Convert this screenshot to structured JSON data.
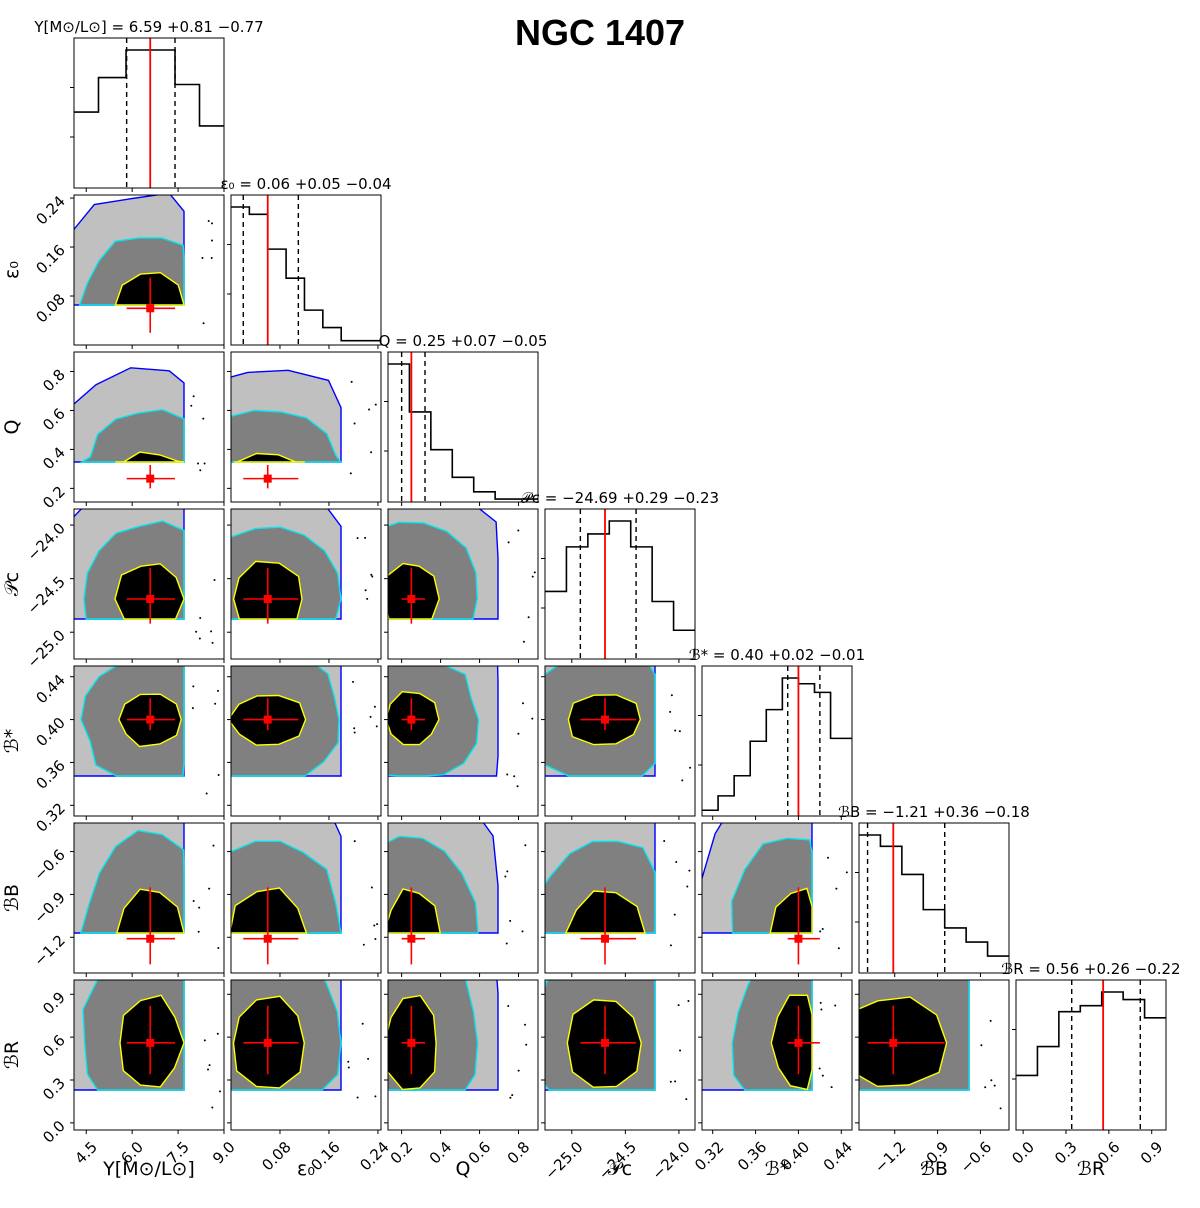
{
  "page_title": "NGC 1407",
  "colors": {
    "level_1sigma": "#000000",
    "level_2sigma": "#808080",
    "level_3sigma": "#c0c0c0",
    "contour_1sigma": "#ffff00",
    "contour_2sigma": "#00e5ee",
    "contour_3sigma": "#0000ff",
    "median_marker": "#ff0000",
    "quantile_line": "#000000"
  },
  "chart_data": {
    "type": "corner",
    "title": "NGC 1407",
    "grid": false,
    "parameters": [
      {
        "key": "upsilon",
        "label": "Υ[M⊙/L⊙]",
        "title": "Υ[M⊙/L⊙] = 6.59 +0.81 −0.77",
        "median": 6.59,
        "plus": 0.81,
        "minus": 0.77,
        "range": [
          4.1,
          9.0
        ],
        "ticks": [
          4.5,
          6.0,
          7.5,
          9.0
        ],
        "tick_labels": [
          "4.5",
          "6.0",
          "7.5",
          "9.0"
        ],
        "hist_edges": [
          4.1,
          4.9,
          5.8,
          6.6,
          7.4,
          8.2,
          9.0
        ],
        "hist_counts": [
          0.55,
          0.8,
          1.0,
          1.0,
          0.75,
          0.45
        ]
      },
      {
        "key": "eps0",
        "label": "ε₀",
        "title": "ε₀ = 0.06 +0.05 −0.04",
        "median": 0.06,
        "plus": 0.05,
        "minus": 0.04,
        "range": [
          0.0,
          0.245
        ],
        "ticks": [
          0.08,
          0.16,
          0.24
        ],
        "tick_labels": [
          "0.08",
          "0.16",
          "0.24"
        ],
        "hist_edges": [
          0.0,
          0.03,
          0.06,
          0.09,
          0.12,
          0.15,
          0.18,
          0.21,
          0.245
        ],
        "hist_counts": [
          0.95,
          0.9,
          0.66,
          0.46,
          0.24,
          0.12,
          0.03,
          0.03
        ]
      },
      {
        "key": "Q",
        "label": "Q",
        "title": "Q = 0.25 +0.07 −0.05",
        "median": 0.25,
        "plus": 0.07,
        "minus": 0.05,
        "range": [
          0.13,
          0.9
        ],
        "ticks": [
          0.2,
          0.4,
          0.6,
          0.8
        ],
        "tick_labels": [
          "0.2",
          "0.4",
          "0.6",
          "0.8"
        ],
        "hist_edges": [
          0.13,
          0.24,
          0.35,
          0.46,
          0.57,
          0.68,
          0.79,
          0.9
        ],
        "hist_counts": [
          0.95,
          0.62,
          0.36,
          0.17,
          0.07,
          0.02,
          0.02
        ]
      },
      {
        "key": "Pc",
        "label": "𝒫c",
        "title": "𝒫c = −24.69 +0.29 −0.23",
        "median": -24.69,
        "plus": 0.29,
        "minus": 0.23,
        "range": [
          -25.25,
          -23.85
        ],
        "ticks": [
          -25.0,
          -24.5,
          -24.0
        ],
        "tick_labels": [
          "−25.0",
          "−24.5",
          "−24.0"
        ],
        "hist_edges": [
          -25.25,
          -25.05,
          -24.85,
          -24.65,
          -24.45,
          -24.25,
          -24.05,
          -23.85
        ],
        "hist_counts": [
          0.47,
          0.78,
          0.87,
          0.96,
          0.78,
          0.4,
          0.2
        ]
      },
      {
        "key": "Bstar",
        "label": "ℬ*",
        "title": "ℬ* = 0.40 +0.02 −0.01",
        "median": 0.4,
        "plus": 0.02,
        "minus": 0.01,
        "range": [
          0.31,
          0.45
        ],
        "ticks": [
          0.32,
          0.36,
          0.4,
          0.44
        ],
        "tick_labels": [
          "0.32",
          "0.36",
          "0.40",
          "0.44"
        ],
        "hist_edges": [
          0.31,
          0.325,
          0.34,
          0.355,
          0.37,
          0.385,
          0.4,
          0.415,
          0.43,
          0.45
        ],
        "hist_counts": [
          0.04,
          0.14,
          0.28,
          0.52,
          0.74,
          0.96,
          0.92,
          0.86,
          0.54
        ]
      },
      {
        "key": "BB",
        "label": "ℬB",
        "title": "ℬB = −1.21 +0.36 −0.18",
        "median": -1.21,
        "plus": 0.36,
        "minus": 0.18,
        "range": [
          -1.45,
          -0.4
        ],
        "ticks": [
          -1.2,
          -0.9,
          -0.6
        ],
        "tick_labels": [
          "−1.2",
          "−0.9",
          "−0.6"
        ],
        "hist_edges": [
          -1.45,
          -1.3,
          -1.15,
          -1.0,
          -0.85,
          -0.7,
          -0.55,
          -0.4
        ],
        "hist_counts": [
          0.98,
          0.9,
          0.7,
          0.45,
          0.32,
          0.22,
          0.12
        ]
      },
      {
        "key": "BR",
        "label": "ℬR",
        "title": "ℬR = 0.56 +0.26 −0.22",
        "median": 0.56,
        "plus": 0.26,
        "minus": 0.22,
        "range": [
          -0.05,
          1.0
        ],
        "ticks": [
          0.0,
          0.3,
          0.6,
          0.9
        ],
        "tick_labels": [
          "0.0",
          "0.3",
          "0.6",
          "0.9"
        ],
        "hist_edges": [
          -0.05,
          0.1,
          0.25,
          0.4,
          0.55,
          0.7,
          0.85,
          1.0
        ],
        "hist_counts": [
          0.36,
          0.55,
          0.78,
          0.82,
          0.91,
          0.86,
          0.74
        ]
      }
    ]
  }
}
